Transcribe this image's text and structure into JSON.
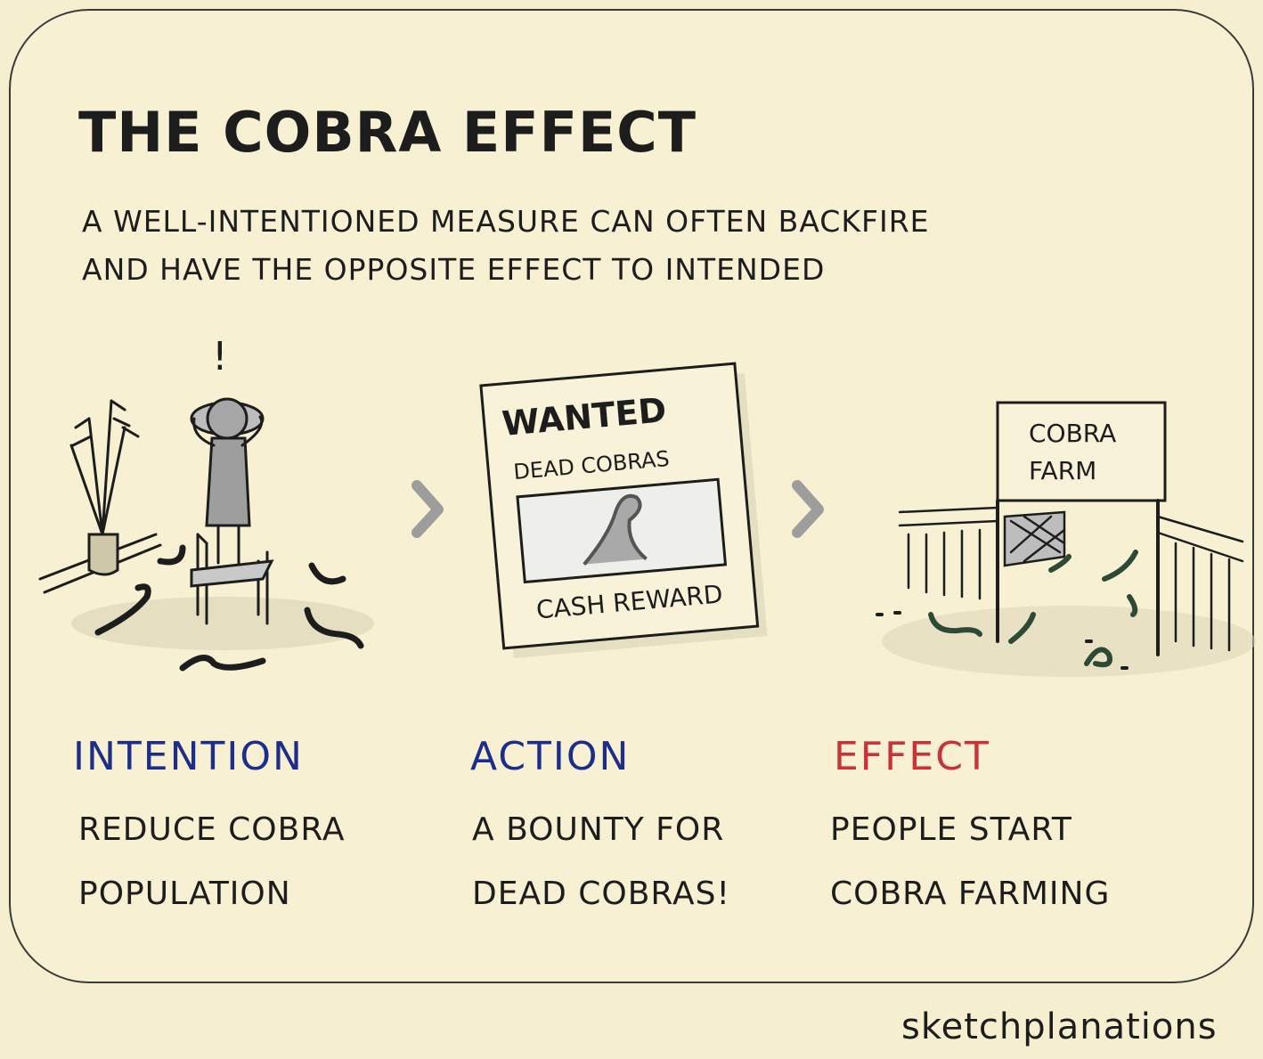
{
  "title": "THE COBRA EFFECT",
  "subtitle": {
    "line1": "A WELL-INTENTIONED MEASURE CAN OFTEN BACKFIRE",
    "line2": "AND HAVE THE OPPOSITE EFFECT TO INTENDED"
  },
  "panels": [
    {
      "label": "INTENTION",
      "desc1": "REDUCE COBRA",
      "desc2": "POPULATION",
      "color": "#1c2d8a"
    },
    {
      "label": "ACTION",
      "desc1": "A BOUNTY FOR",
      "desc2": "DEAD COBRAS!",
      "color": "#1c2d8a"
    },
    {
      "label": "EFFECT",
      "desc1": "PEOPLE START",
      "desc2": "COBRA FARMING",
      "color": "#c8333a"
    }
  ],
  "poster": {
    "heading": "WANTED",
    "subheading": "DEAD COBRAS",
    "footer": "CASH REWARD"
  },
  "farm_sign": {
    "line1": "COBRA",
    "line2": "FARM"
  },
  "exclamation": "!",
  "credit": "sketchplanations"
}
